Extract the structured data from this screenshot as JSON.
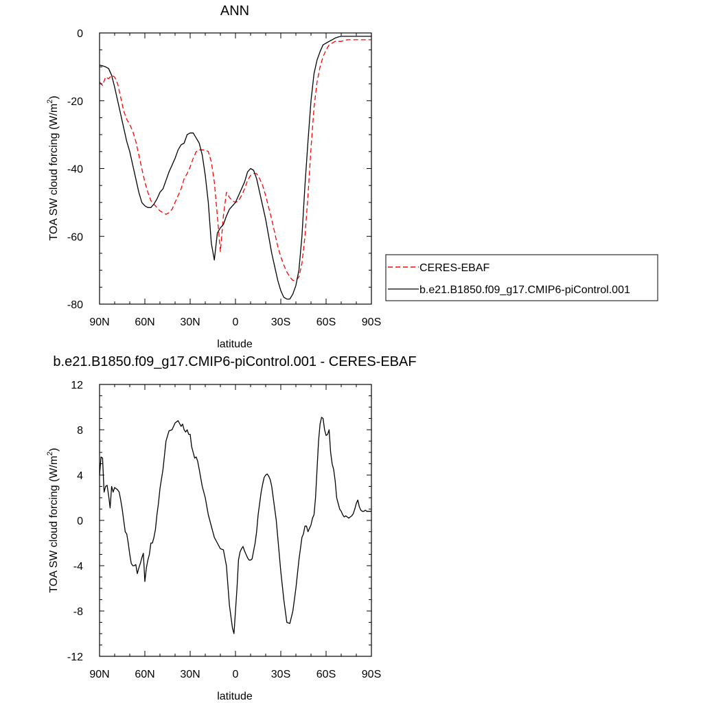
{
  "chart_data": [
    {
      "type": "line",
      "title": "ANN",
      "xlabel": "latitude",
      "ylabel_main": "TOA SW cloud forcing (W/m",
      "ylabel_sup": "2",
      "ylabel_close": ")",
      "xlim": [
        90,
        -90
      ],
      "ylim": [
        -80,
        0
      ],
      "xticks": [
        {
          "value": 90,
          "label": "90N"
        },
        {
          "value": 60,
          "label": "60N"
        },
        {
          "value": 30,
          "label": "30N"
        },
        {
          "value": 0,
          "label": "0"
        },
        {
          "value": -30,
          "label": "30S"
        },
        {
          "value": -60,
          "label": "60S"
        },
        {
          "value": -90,
          "label": "90S"
        }
      ],
      "yticks": [
        {
          "value": 0,
          "label": "0"
        },
        {
          "value": -20,
          "label": "-20"
        },
        {
          "value": -40,
          "label": "-40"
        },
        {
          "value": -60,
          "label": "-60"
        },
        {
          "value": -80,
          "label": "-80"
        }
      ],
      "legend_position": "right",
      "series": [
        {
          "name": "CERES-EBAF",
          "color": "#ff0000",
          "dash": "dashed",
          "x": [
            90,
            88,
            86,
            84,
            82,
            80,
            78,
            76,
            74,
            72,
            70,
            68,
            66,
            64,
            62,
            60,
            58,
            56,
            54,
            52,
            50,
            48,
            46,
            44,
            42,
            40,
            38,
            36,
            34,
            32,
            30,
            28,
            26,
            24,
            22,
            20,
            18,
            16,
            14,
            12,
            10,
            8,
            6,
            4,
            2,
            0,
            -2,
            -4,
            -6,
            -8,
            -10,
            -12,
            -14,
            -16,
            -18,
            -20,
            -22,
            -24,
            -26,
            -28,
            -30,
            -32,
            -34,
            -36,
            -38,
            -40,
            -42,
            -44,
            -46,
            -48,
            -50,
            -52,
            -54,
            -56,
            -58,
            -60,
            -62,
            -64,
            -66,
            -68,
            -70,
            -72,
            -74,
            -76,
            -78,
            -80,
            -82,
            -84,
            -86,
            -88,
            -90
          ],
          "y": [
            -14.5,
            -15.5,
            -13,
            -13.5,
            -12.5,
            -13,
            -15,
            -19,
            -23,
            -25.5,
            -27,
            -29,
            -32,
            -36,
            -40,
            -44,
            -47,
            -49.5,
            -50.5,
            -51.5,
            -52.5,
            -53,
            -53.5,
            -53,
            -52,
            -50,
            -48,
            -46,
            -43,
            -41.5,
            -39.5,
            -37,
            -35,
            -34.5,
            -34.5,
            -34.5,
            -35,
            -38,
            -44,
            -54,
            -64.5,
            -54,
            -47,
            -48.5,
            -49.5,
            -50,
            -49.5,
            -48,
            -46,
            -43.5,
            -42,
            -41.5,
            -41.5,
            -43,
            -45,
            -48,
            -51.5,
            -55,
            -59,
            -63,
            -66,
            -68.5,
            -70.5,
            -72,
            -73,
            -73,
            -72,
            -68,
            -60,
            -48,
            -34,
            -22,
            -14.5,
            -10,
            -7,
            -5,
            -3.5,
            -3,
            -2.5,
            -2.5,
            -2.5,
            -2.2,
            -2,
            -2,
            -2,
            -2,
            -2,
            -2,
            -2,
            -2,
            -2
          ]
        },
        {
          "name": "b.e21.B1850.f09_g17.CMIP6-piControl.001",
          "color": "#000000",
          "dash": "solid",
          "x": [
            90,
            88,
            86,
            84,
            82,
            80,
            78,
            76,
            74,
            72,
            70,
            68,
            66,
            64,
            62,
            60,
            58,
            56,
            54,
            52,
            50,
            48,
            46,
            44,
            42,
            40,
            38,
            36,
            34,
            32,
            30,
            28,
            26,
            24,
            22,
            20,
            18,
            16,
            14,
            12,
            10,
            8,
            6,
            4,
            2,
            0,
            -2,
            -4,
            -6,
            -8,
            -10,
            -12,
            -14,
            -16,
            -18,
            -20,
            -22,
            -24,
            -26,
            -28,
            -30,
            -32,
            -34,
            -36,
            -38,
            -40,
            -42,
            -44,
            -46,
            -48,
            -50,
            -52,
            -54,
            -56,
            -58,
            -60,
            -62,
            -64,
            -66,
            -68,
            -70,
            -72,
            -74,
            -76,
            -78,
            -80,
            -82,
            -84,
            -86,
            -88,
            -90
          ],
          "y": [
            -9.5,
            -9.7,
            -10,
            -10.5,
            -12.5,
            -16,
            -20,
            -24,
            -28,
            -32,
            -35,
            -39,
            -43,
            -47,
            -50,
            -51,
            -51.5,
            -51.5,
            -50.5,
            -49,
            -47,
            -46,
            -43.5,
            -41,
            -39,
            -37,
            -34.5,
            -33,
            -32.5,
            -30,
            -29.5,
            -29.5,
            -31,
            -32.5,
            -36,
            -42,
            -50,
            -62,
            -67,
            -59,
            -57.5,
            -56.5,
            -54,
            -52,
            -51,
            -50,
            -48,
            -46,
            -44,
            -41,
            -40,
            -40.5,
            -43,
            -47,
            -51,
            -55,
            -60,
            -65,
            -69,
            -73,
            -76,
            -78,
            -78.5,
            -78.5,
            -77,
            -74.5,
            -70,
            -60,
            -45,
            -32,
            -20,
            -12,
            -8,
            -5.5,
            -3.5,
            -3,
            -2.5,
            -2,
            -1.5,
            -1.2,
            -1,
            -1,
            -1,
            -1,
            -1,
            -1,
            -1,
            -1,
            -1,
            -1,
            -1
          ]
        }
      ]
    },
    {
      "type": "line",
      "title": "b.e21.B1850.f09_g17.CMIP6-piControl.001 - CERES-EBAF",
      "xlabel": "latitude",
      "ylabel_main": "TOA SW cloud forcing (W/m",
      "ylabel_sup": "2",
      "ylabel_close": ")",
      "xlim": [
        90,
        -90
      ],
      "ylim": [
        -12,
        12
      ],
      "xticks": [
        {
          "value": 90,
          "label": "90N"
        },
        {
          "value": 60,
          "label": "60N"
        },
        {
          "value": 30,
          "label": "30N"
        },
        {
          "value": 0,
          "label": "0"
        },
        {
          "value": -30,
          "label": "30S"
        },
        {
          "value": -60,
          "label": "60S"
        },
        {
          "value": -90,
          "label": "90S"
        }
      ],
      "yticks": [
        {
          "value": 12,
          "label": "12"
        },
        {
          "value": 8,
          "label": "8"
        },
        {
          "value": 4,
          "label": "4"
        },
        {
          "value": 0,
          "label": "0"
        },
        {
          "value": -4,
          "label": "-4"
        },
        {
          "value": -8,
          "label": "-8"
        },
        {
          "value": -12,
          "label": "-12"
        }
      ],
      "series": [
        {
          "color": "#000000",
          "dash": "solid",
          "x": [
            90,
            89,
            88,
            87,
            86,
            85,
            84,
            83,
            82,
            81,
            80,
            79,
            78,
            77,
            76,
            75,
            74,
            73,
            72,
            71,
            70,
            69,
            68,
            67,
            66,
            65,
            64,
            63,
            62,
            61,
            60,
            59,
            58,
            57,
            56,
            55,
            54,
            53,
            52,
            51,
            50,
            48,
            46,
            44,
            42,
            40,
            38,
            36,
            35,
            34,
            33,
            32,
            31,
            30,
            29,
            28,
            27,
            26,
            25,
            24,
            22,
            20,
            18,
            16,
            14,
            12,
            10,
            8,
            6,
            4,
            3,
            2,
            1,
            0,
            -1,
            -2,
            -3,
            -4,
            -5,
            -6,
            -7,
            -8,
            -9,
            -10,
            -11,
            -12,
            -13,
            -14,
            -15,
            -16,
            -17,
            -18,
            -19,
            -20,
            -21,
            -22,
            -23,
            -24,
            -25,
            -26,
            -27,
            -28,
            -29,
            -30,
            -32,
            -34,
            -36,
            -38,
            -40,
            -42,
            -43,
            -44,
            -45,
            -46,
            -47,
            -48,
            -49,
            -50,
            -51,
            -52,
            -53,
            -54,
            -55,
            -56,
            -57,
            -58,
            -59,
            -60,
            -61,
            -62,
            -63,
            -64,
            -65,
            -66,
            -67,
            -68,
            -69,
            -70,
            -71,
            -72,
            -73,
            -74,
            -75,
            -76,
            -77,
            -78,
            -79,
            -80,
            -81,
            -82,
            -83,
            -84,
            -85,
            -86,
            -87,
            -88,
            -89,
            -90
          ],
          "y": [
            4.0,
            5.6,
            5.5,
            2.5,
            3.0,
            3.1,
            2.2,
            1.1,
            3.0,
            2.5,
            2.9,
            2.8,
            2.7,
            2.5,
            1.8,
            1.0,
            0.0,
            -1.0,
            -1.2,
            -2.0,
            -3.0,
            -3.8,
            -4.0,
            -4.0,
            -3.9,
            -4.7,
            -4.2,
            -3.8,
            -3.3,
            -2.9,
            -5.4,
            -4.2,
            -3.5,
            -3.0,
            -2.0,
            -2.0,
            -1.5,
            -0.8,
            0.5,
            1.5,
            2.8,
            4.5,
            7.0,
            7.9,
            8.0,
            8.6,
            8.8,
            8.3,
            8.5,
            8.0,
            7.8,
            8.0,
            7.6,
            7.6,
            6.5,
            6.0,
            5.5,
            5.6,
            5.2,
            4.5,
            3.0,
            2.0,
            0.5,
            -0.5,
            -1.5,
            -2.0,
            -2.5,
            -2.6,
            -4.0,
            -7.5,
            -8.5,
            -9.5,
            -10.0,
            -8.0,
            -6.0,
            -3.5,
            -2.8,
            -2.5,
            -2.3,
            -2.7,
            -3.0,
            -3.3,
            -3.5,
            -3.5,
            -3.4,
            -2.7,
            -2.0,
            -1.0,
            0.5,
            1.5,
            2.5,
            3.2,
            3.8,
            4.0,
            4.1,
            3.9,
            3.6,
            3.0,
            2.0,
            1.0,
            0.0,
            -1.5,
            -3.0,
            -4.5,
            -7.0,
            -9.0,
            -9.1,
            -8.0,
            -6.0,
            -3.5,
            -2.5,
            -1.5,
            -1.2,
            -0.5,
            -0.5,
            -1.0,
            -0.7,
            -0.4,
            0.2,
            0.5,
            2.0,
            4.5,
            7.0,
            8.5,
            9.1,
            9.0,
            8.0,
            7.5,
            7.6,
            8.0,
            6.0,
            5.0,
            4.5,
            3.5,
            2.0,
            1.5,
            1.0,
            0.8,
            0.5,
            0.3,
            0.4,
            0.3,
            0.2,
            0.3,
            0.4,
            0.6,
            1.0,
            1.5,
            1.8,
            1.2,
            0.9,
            0.8,
            0.8,
            0.9,
            0.8,
            0.8,
            0.8,
            0.8
          ]
        }
      ]
    }
  ]
}
